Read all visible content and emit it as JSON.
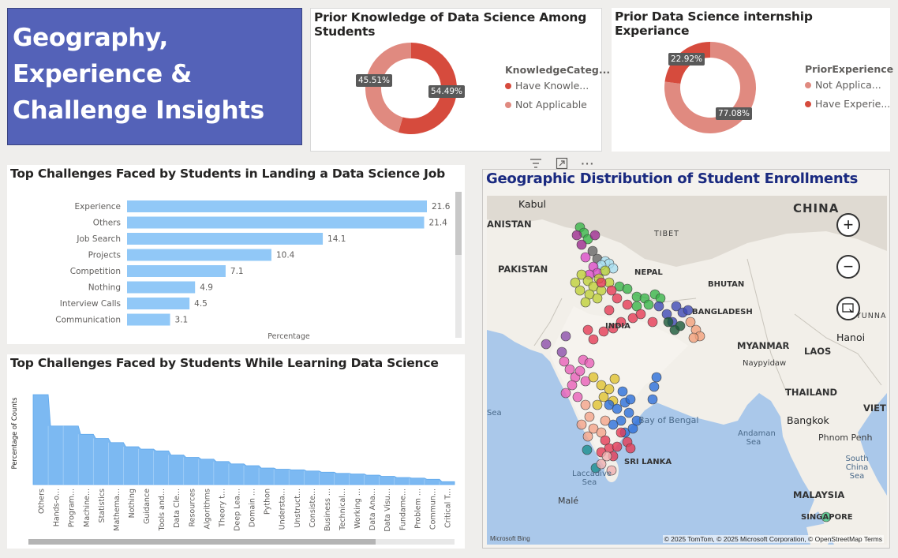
{
  "header": {
    "line1": "Geography,",
    "line2": "Experience &",
    "line3": "Challenge Insights"
  },
  "knowledge_card": {
    "title": "Prior Knowledge of Data Science Among Students",
    "legend_title": "KnowledgeCateg...",
    "legend": [
      "Have Knowle...",
      "Not Applicable"
    ],
    "labels": [
      "54.49%",
      "45.51%"
    ]
  },
  "experience_card": {
    "title": "Prior Data Science internship Experiance",
    "legend_title": "PriorExperience",
    "legend": [
      "Not Applica...",
      "Have Experie..."
    ],
    "labels": [
      "77.08%",
      "22.92%"
    ]
  },
  "toolbar": {
    "filter_icon": "filter-icon",
    "focus_icon": "focus-mode-icon",
    "more_icon": "more-options-icon"
  },
  "job_chart": {
    "title": "Top Challenges Faced by Students in Landing a Data Science Job",
    "xlabel": "Percentage"
  },
  "learning_chart": {
    "title": "Top Challenges Faced by Students While Learning Data Science",
    "ylabel": "Percentage of Counts"
  },
  "map": {
    "title": "Geographic Distribution of Student Enrollments",
    "labels": {
      "kabul": "Kabul",
      "china": "CHINA",
      "pakistan": "PAKISTAN",
      "tibet": "TIBET",
      "nepal": "NEPAL",
      "bhutan": "BHUTAN",
      "bangladesh": "BANGLADESH",
      "india": "INDIA",
      "myanmar": "MYANMAR",
      "laos": "LAOS",
      "hanoi": "Hanoi",
      "naypyidaw": "Naypyidaw",
      "thailand": "THAILAND",
      "bangkok": "Bangkok",
      "vietnam": "VIETNA",
      "phnompenh": "Phnom Penh",
      "yunnan": "YUNNAN",
      "bayofbengal": "Bay of Bengal",
      "andaman": "Andaman Sea",
      "srilanka": "SRI LANKA",
      "laccadive": "Laccadive Sea",
      "male": "Malé",
      "malaysia": "MALAYSIA",
      "singapore": "SINGAPORE",
      "southchina": "South China Sea",
      "anistan": "ANISTAN",
      "sea": "Sea"
    },
    "attribution": "© 2025 TomTom, © 2025 Microsoft Corporation, © OpenStreetMap  Terms",
    "bing": "Microsoft Bing",
    "zoom_in": "+",
    "zoom_out": "−"
  },
  "chart_data": [
    {
      "type": "pie",
      "title": "Prior Knowledge of Data Science Among Students",
      "legend_title": "KnowledgeCateg...",
      "categories": [
        "Have Knowle...",
        "Not Applicable"
      ],
      "values": [
        54.49,
        45.51
      ],
      "colors": [
        "#d64b3d",
        "#e08a80"
      ],
      "legend_position": "right"
    },
    {
      "type": "pie",
      "title": "Prior Data Science internship Experiance",
      "legend_title": "PriorExperience",
      "categories": [
        "Not Applica...",
        "Have Experie..."
      ],
      "values": [
        77.08,
        22.92
      ],
      "colors": [
        "#e08a80",
        "#d64b3d"
      ],
      "legend_position": "right"
    },
    {
      "type": "bar",
      "orientation": "horizontal",
      "title": "Top Challenges Faced by Students in Landing a Data Science Job",
      "xlabel": "Percentage",
      "categories": [
        "Experience",
        "Others",
        "Job Search",
        "Projects",
        "Competition",
        "Nothing",
        "Interview Calls",
        "Communication"
      ],
      "values": [
        21.6,
        21.4,
        14.1,
        10.4,
        7.1,
        4.9,
        4.5,
        3.1
      ],
      "color": "#91c8f7"
    },
    {
      "type": "area",
      "title": "Top Challenges Faced by Students While Learning Data Science",
      "ylabel": "Percentage of Counts",
      "categories": [
        "Others",
        "Hands-o...",
        "Program...",
        "Machine...",
        "Statistics",
        "Mathema...",
        "Nothing",
        "Guidance",
        "Tools and...",
        "Data Cle...",
        "Resources",
        "Algorithms",
        "Theory t...",
        "Deep Lea...",
        "Domain ...",
        "Python",
        "Understa...",
        "Unstruct...",
        "Consiste...",
        "Business ...",
        "Technical...",
        "Working ...",
        "Data Ana...",
        "Data Visu...",
        "Fundame...",
        "Problem ...",
        "Commun...",
        "Critical T..."
      ],
      "values": [
        15.2,
        9.9,
        9.9,
        8.5,
        7.8,
        7.1,
        6.4,
        6.0,
        5.7,
        5.0,
        4.6,
        4.3,
        3.9,
        3.5,
        3.2,
        2.8,
        2.6,
        2.5,
        2.3,
        2.1,
        1.9,
        1.8,
        1.6,
        1.4,
        1.2,
        1.1,
        0.9,
        0.5
      ],
      "color": "#7cb9f2"
    }
  ]
}
